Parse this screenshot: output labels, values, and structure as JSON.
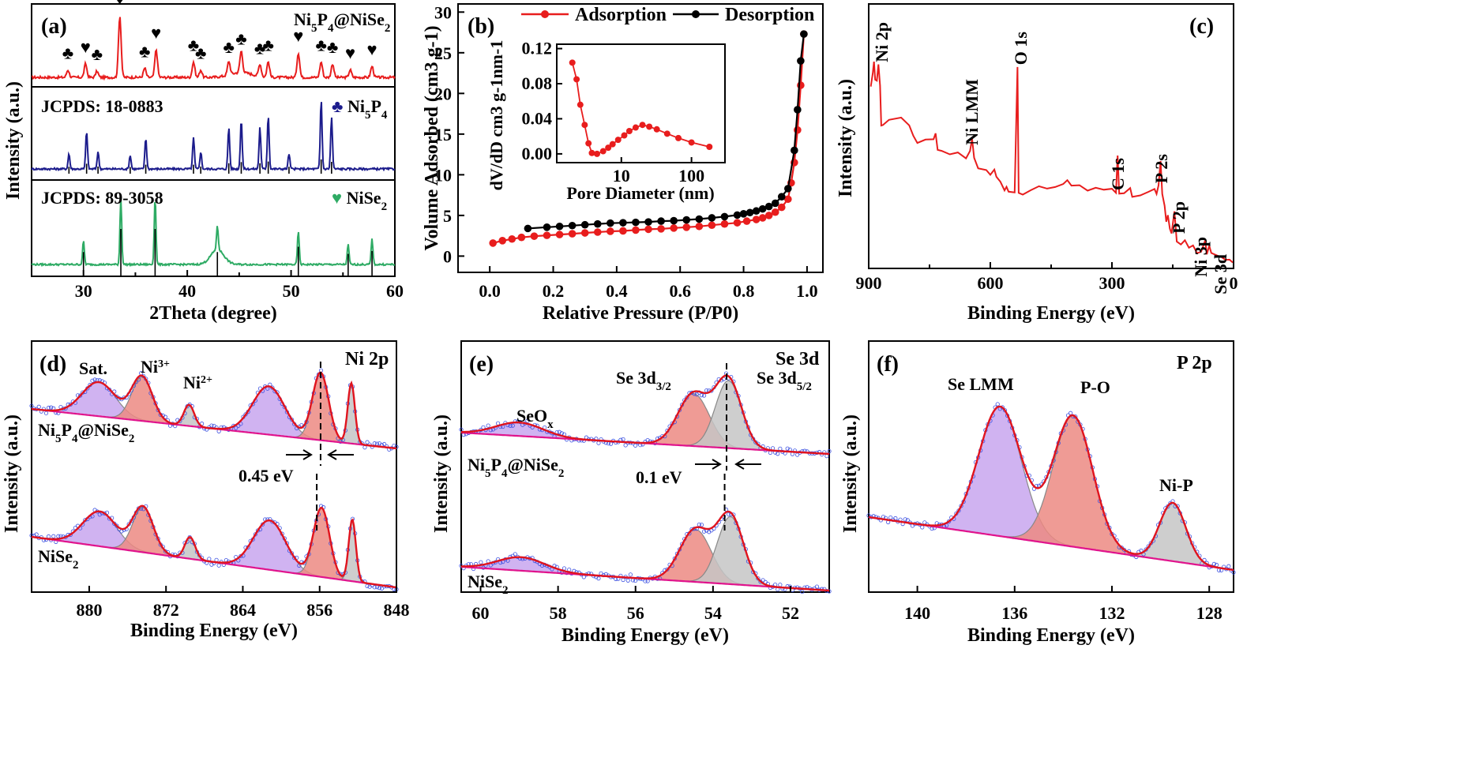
{
  "colors": {
    "red": "#e81d1d",
    "blue": "#1c1c8c",
    "green": "#2eab64",
    "black": "#000000",
    "purple": "#c8a6ee",
    "salmon": "#ec8a82",
    "gray": "#c6c6c6",
    "envelope": "#e0141e",
    "baseline": "#e0138c",
    "scatter": "#3c50e0"
  },
  "chart_data": [
    {
      "id": "a",
      "type": "line",
      "panel_label": "(a)",
      "xlabel": "2Theta (degree)",
      "ylabel": "Intensity (a.u.)",
      "xlim": [
        25,
        60
      ],
      "xticks": [
        "30",
        "40",
        "50",
        "60"
      ],
      "traces": [
        {
          "label": "Ni5P4@NiSe2",
          "color": "#e81d1d",
          "peaks": [
            [
              28.5,
              0.12
            ],
            [
              30.2,
              0.22
            ],
            [
              31.3,
              0.1
            ],
            [
              33.5,
              1.0
            ],
            [
              35.9,
              0.15
            ],
            [
              37.0,
              0.45
            ],
            [
              40.6,
              0.25
            ],
            [
              41.3,
              0.12
            ],
            [
              44.0,
              0.22
            ],
            [
              45.2,
              0.35
            ],
            [
              47.0,
              0.2
            ],
            [
              47.8,
              0.25
            ],
            [
              50.7,
              0.4
            ],
            [
              52.9,
              0.25
            ],
            [
              54.0,
              0.22
            ],
            [
              55.7,
              0.12
            ],
            [
              57.8,
              0.18
            ]
          ]
        },
        {
          "label": "Ni5P4",
          "color": "#1c1c8c",
          "peaks": [
            [
              28.6,
              0.22
            ],
            [
              30.3,
              0.55
            ],
            [
              31.4,
              0.25
            ],
            [
              34.5,
              0.2
            ],
            [
              36.0,
              0.45
            ],
            [
              40.6,
              0.45
            ],
            [
              41.3,
              0.25
            ],
            [
              44.0,
              0.6
            ],
            [
              45.2,
              0.72
            ],
            [
              47.0,
              0.6
            ],
            [
              47.8,
              0.78
            ],
            [
              49.8,
              0.22
            ],
            [
              52.9,
              1.0
            ],
            [
              53.9,
              0.75
            ]
          ]
        },
        {
          "label": "NiSe2",
          "color": "#2eab64",
          "peaks": [
            [
              30.0,
              0.35
            ],
            [
              33.6,
              1.0
            ],
            [
              36.9,
              1.0
            ],
            [
              42.9,
              0.35
            ],
            [
              50.7,
              0.5
            ],
            [
              55.5,
              0.3
            ],
            [
              57.8,
              0.38
            ]
          ]
        }
      ],
      "texts": {
        "sample": "Ni5P4@NiSe2",
        "ref1": "JCPDS: 18-0883",
        "ref1_name": "Ni5P4",
        "ref2": "JCPDS: 89-3058",
        "ref2_name": "NiSe2"
      },
      "ref_markers_niSe2": [
        30.0,
        33.5,
        36.9,
        42.9,
        50.6,
        55.4,
        57.7
      ]
    },
    {
      "id": "b",
      "type": "line",
      "panel_label": "(b)",
      "xlabel": "Relative Pressure (P/P0)",
      "ylabel": "Volume Adsorbed (cm3 g-1)",
      "xlim": [
        -0.1,
        1.05
      ],
      "ylim": [
        -2,
        31
      ],
      "xticks": [
        "0.0",
        "0.2",
        "0.4",
        "0.6",
        "0.8",
        "1.0"
      ],
      "yticks": [
        "0",
        "5",
        "10",
        "15",
        "20",
        "25",
        "30"
      ],
      "legend": [
        "Adsorption",
        "Desorption"
      ],
      "series": [
        {
          "name": "Adsorption",
          "color": "#e81d1d",
          "x": [
            0.01,
            0.04,
            0.07,
            0.1,
            0.14,
            0.18,
            0.22,
            0.26,
            0.3,
            0.34,
            0.38,
            0.42,
            0.46,
            0.5,
            0.54,
            0.58,
            0.62,
            0.66,
            0.7,
            0.74,
            0.78,
            0.81,
            0.84,
            0.86,
            0.88,
            0.9,
            0.92,
            0.94,
            0.95,
            0.96,
            0.97,
            0.98,
            0.99
          ],
          "y": [
            1.6,
            1.9,
            2.1,
            2.3,
            2.45,
            2.55,
            2.65,
            2.75,
            2.85,
            2.95,
            3.05,
            3.1,
            3.2,
            3.3,
            3.35,
            3.45,
            3.55,
            3.65,
            3.8,
            3.95,
            4.1,
            4.3,
            4.5,
            4.7,
            5.0,
            5.4,
            6.0,
            7.0,
            9.0,
            11.5,
            15.5,
            21.0,
            27.3
          ]
        },
        {
          "name": "Desorption",
          "color": "#000000",
          "x": [
            0.12,
            0.18,
            0.22,
            0.26,
            0.3,
            0.34,
            0.38,
            0.42,
            0.46,
            0.5,
            0.54,
            0.58,
            0.62,
            0.66,
            0.7,
            0.74,
            0.78,
            0.8,
            0.82,
            0.84,
            0.86,
            0.88,
            0.9,
            0.92,
            0.94,
            0.96,
            0.97,
            0.98,
            0.99
          ],
          "y": [
            3.4,
            3.55,
            3.65,
            3.75,
            3.85,
            3.95,
            4.05,
            4.1,
            4.15,
            4.2,
            4.3,
            4.35,
            4.45,
            4.55,
            4.7,
            4.85,
            5.05,
            5.2,
            5.35,
            5.55,
            5.8,
            6.1,
            6.5,
            7.3,
            8.3,
            13.0,
            18.0,
            24.0,
            27.3
          ]
        }
      ],
      "inset": {
        "xlabel": "Pore Diameter (nm)",
        "ylabel": "dV/dD cm3 g-1nm-1",
        "xticks": [
          "10",
          "100"
        ],
        "yticks": [
          "0.00",
          "0.04",
          "0.08",
          "0.12"
        ],
        "ylim": [
          -0.01,
          0.125
        ],
        "x": [
          2.0,
          2.3,
          2.6,
          3.0,
          3.4,
          3.8,
          4.5,
          5.5,
          6.5,
          7.5,
          9,
          11,
          13,
          16,
          20,
          25,
          32,
          45,
          65,
          100,
          180
        ],
        "y": [
          0.104,
          0.085,
          0.056,
          0.033,
          0.012,
          0.001,
          0.0,
          0.003,
          0.007,
          0.011,
          0.016,
          0.021,
          0.026,
          0.03,
          0.033,
          0.031,
          0.028,
          0.023,
          0.018,
          0.013,
          0.008
        ]
      }
    },
    {
      "id": "c",
      "type": "line",
      "panel_label": "(c)",
      "xlabel": "Binding Energy (eV)",
      "ylabel": "Intensity (a.u.)",
      "xlim": [
        900,
        0
      ],
      "xticks": [
        "900",
        "600",
        "300",
        "0"
      ],
      "labels": [
        "Ni 2p",
        "Ni LMM",
        "O 1s",
        "C 1s",
        "P 2s",
        "P 2p",
        "Ni 3p",
        "Se 3d"
      ],
      "color": "#e81d1d"
    },
    {
      "id": "d",
      "type": "area",
      "panel_label": "(d)",
      "title": "Ni 2p",
      "xlabel": "Binding Energy (eV)",
      "ylabel": "Intensity (a.u.)",
      "xlim": [
        886,
        848
      ],
      "xticks": [
        "880",
        "872",
        "864",
        "856",
        "848"
      ],
      "peak_labels": [
        "Sat.",
        "Ni3+",
        "Ni2+"
      ],
      "samples": [
        "Ni5P4@NiSe2",
        "NiSe2"
      ],
      "shift": "0.45 eV",
      "components": [
        {
          "center": 878.9,
          "width": 2.6,
          "amp": 0.48,
          "color": "#c8a6ee"
        },
        {
          "center": 874.4,
          "width": 1.6,
          "amp": 0.62,
          "color": "#ec8a82"
        },
        {
          "center": 869.5,
          "width": 0.8,
          "amp": 0.3,
          "color": "#c6c6c6"
        },
        {
          "center": 861.2,
          "width": 2.5,
          "amp": 0.68,
          "color": "#c8a6ee"
        },
        {
          "center": 855.8,
          "width": 1.25,
          "amp": 0.95,
          "color": "#ec8a82"
        },
        {
          "center": 852.6,
          "width": 0.55,
          "amp": 0.85,
          "color": "#c6c6c6"
        }
      ]
    },
    {
      "id": "e",
      "type": "area",
      "panel_label": "(e)",
      "title": "Se 3d",
      "xlabel": "Binding Energy (eV)",
      "ylabel": "Intensity (a.u.)",
      "xlim": [
        60.5,
        51
      ],
      "xticks": [
        "60",
        "58",
        "56",
        "54",
        "52"
      ],
      "peak_labels": [
        "SeOx",
        "Se 3d3/2",
        "Se 3d5/2"
      ],
      "samples": [
        "Ni5P4@NiSe2",
        "NiSe2"
      ],
      "shift": "0.1 eV",
      "components": [
        {
          "center": 59.0,
          "width": 0.9,
          "amp": 0.18,
          "color": "#c8a6ee"
        },
        {
          "center": 54.5,
          "width": 0.6,
          "amp": 0.7,
          "color": "#ec8a82"
        },
        {
          "center": 53.6,
          "width": 0.5,
          "amp": 0.9,
          "color": "#c6c6c6"
        }
      ]
    },
    {
      "id": "f",
      "type": "area",
      "panel_label": "(f)",
      "title": "P 2p",
      "xlabel": "Binding Energy (eV)",
      "ylabel": "Intensity (a.u.)",
      "xlim": [
        142,
        127
      ],
      "xticks": [
        "140",
        "136",
        "132",
        "128"
      ],
      "peak_labels": [
        "Se LMM",
        "P-O",
        "Ni-P"
      ],
      "components": [
        {
          "center": 136.6,
          "width": 1.3,
          "amp": 0.82,
          "color": "#c8a6ee"
        },
        {
          "center": 133.6,
          "width": 1.2,
          "amp": 0.83,
          "color": "#ec8a82"
        },
        {
          "center": 129.5,
          "width": 0.8,
          "amp": 0.37,
          "color": "#c6c6c6"
        }
      ]
    }
  ]
}
